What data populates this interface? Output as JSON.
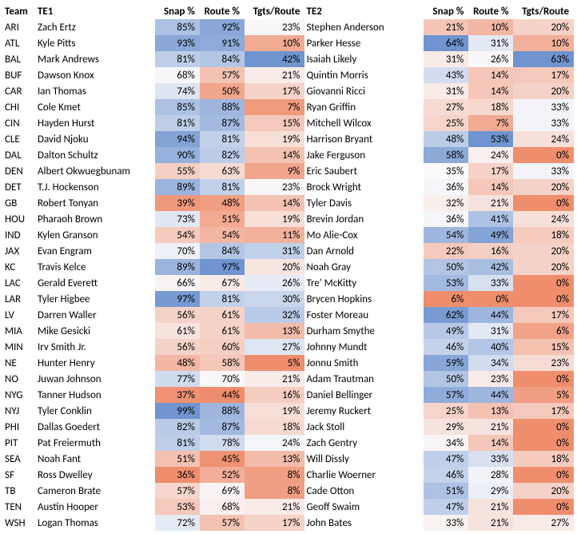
{
  "columns": [
    "Team",
    "TE1",
    "Snap %",
    "Route %",
    "Tgts/Route",
    "TE2",
    "Snap %",
    "Route %",
    "Tgts/Route"
  ],
  "rows": [
    {
      "team": "ARI",
      "te1": "Zach Ertz",
      "s1": 85,
      "r1": 92,
      "t1": 23,
      "te2": "Stephen Anderson",
      "s2": 21,
      "r2": 10,
      "t2": 20
    },
    {
      "team": "ATL",
      "te1": "Kyle Pitts",
      "s1": 93,
      "r1": 91,
      "t1": 10,
      "te2": "Parker Hesse",
      "s2": 64,
      "r2": 31,
      "t2": 10
    },
    {
      "team": "BAL",
      "te1": "Mark Andrews",
      "s1": 81,
      "r1": 84,
      "t1": 42,
      "te2": "Isaiah Likely",
      "s2": 31,
      "r2": 26,
      "t2": 63
    },
    {
      "team": "BUF",
      "te1": "Dawson Knox",
      "s1": 68,
      "r1": 57,
      "t1": 21,
      "te2": "Quintin Morris",
      "s2": 43,
      "r2": 14,
      "t2": 17
    },
    {
      "team": "CAR",
      "te1": "Ian Thomas",
      "s1": 74,
      "r1": 50,
      "t1": 17,
      "te2": "Giovanni Ricci",
      "s2": 31,
      "r2": 14,
      "t2": 20
    },
    {
      "team": "CHI",
      "te1": "Cole Kmet",
      "s1": 85,
      "r1": 88,
      "t1": 7,
      "te2": "Ryan Griffin",
      "s2": 27,
      "r2": 18,
      "t2": 33
    },
    {
      "team": "CIN",
      "te1": "Hayden Hurst",
      "s1": 81,
      "r1": 87,
      "t1": 15,
      "te2": "Mitchell Wilcox",
      "s2": 25,
      "r2": 7,
      "t2": 33
    },
    {
      "team": "CLE",
      "te1": "David Njoku",
      "s1": 94,
      "r1": 81,
      "t1": 19,
      "te2": "Harrison Bryant",
      "s2": 48,
      "r2": 53,
      "t2": 24
    },
    {
      "team": "DAL",
      "te1": "Dalton Schultz",
      "s1": 90,
      "r1": 82,
      "t1": 14,
      "te2": "Jake Ferguson",
      "s2": 58,
      "r2": 24,
      "t2": 0
    },
    {
      "team": "DEN",
      "te1": "Albert Okwuegbunam",
      "s1": 55,
      "r1": 63,
      "t1": 9,
      "te2": "Eric Saubert",
      "s2": 35,
      "r2": 17,
      "t2": 33
    },
    {
      "team": "DET",
      "te1": "T.J. Hockenson",
      "s1": 89,
      "r1": 81,
      "t1": 23,
      "te2": "Brock Wright",
      "s2": 36,
      "r2": 14,
      "t2": 20
    },
    {
      "team": "GB",
      "te1": "Robert Tonyan",
      "s1": 39,
      "r1": 48,
      "t1": 14,
      "te2": "Tyler Davis",
      "s2": 32,
      "r2": 21,
      "t2": 0
    },
    {
      "team": "HOU",
      "te1": "Pharaoh Brown",
      "s1": 73,
      "r1": 51,
      "t1": 19,
      "te2": "Brevin Jordan",
      "s2": 36,
      "r2": 41,
      "t2": 24
    },
    {
      "team": "IND",
      "te1": "Kylen Granson",
      "s1": 54,
      "r1": 54,
      "t1": 11,
      "te2": "Mo Alie-Cox",
      "s2": 54,
      "r2": 49,
      "t2": 18
    },
    {
      "team": "JAX",
      "te1": "Evan Engram",
      "s1": 70,
      "r1": 84,
      "t1": 31,
      "te2": "Dan Arnold",
      "s2": 22,
      "r2": 16,
      "t2": 20
    },
    {
      "team": "KC",
      "te1": "Travis Kelce",
      "s1": 89,
      "r1": 97,
      "t1": 20,
      "te2": "Noah Gray",
      "s2": 50,
      "r2": 42,
      "t2": 20
    },
    {
      "team": "LAC",
      "te1": "Gerald Everett",
      "s1": 66,
      "r1": 67,
      "t1": 26,
      "te2": "Tre' McKitty",
      "s2": 53,
      "r2": 33,
      "t2": 0
    },
    {
      "team": "LAR",
      "te1": "Tyler Higbee",
      "s1": 97,
      "r1": 81,
      "t1": 30,
      "te2": "Brycen Hopkins",
      "s2": 6,
      "r2": 0,
      "t2": 0
    },
    {
      "team": "LV",
      "te1": "Darren Waller",
      "s1": 56,
      "r1": 61,
      "t1": 32,
      "te2": "Foster Moreau",
      "s2": 62,
      "r2": 44,
      "t2": 17
    },
    {
      "team": "MIA",
      "te1": "Mike Gesicki",
      "s1": 61,
      "r1": 61,
      "t1": 13,
      "te2": "Durham Smythe",
      "s2": 49,
      "r2": 31,
      "t2": 6
    },
    {
      "team": "MIN",
      "te1": "Irv Smith Jr.",
      "s1": 56,
      "r1": 60,
      "t1": 27,
      "te2": "Johnny Mundt",
      "s2": 46,
      "r2": 40,
      "t2": 15
    },
    {
      "team": "NE",
      "te1": "Hunter Henry",
      "s1": 48,
      "r1": 58,
      "t1": 5,
      "te2": "Jonnu Smith",
      "s2": 59,
      "r2": 34,
      "t2": 23
    },
    {
      "team": "NO",
      "te1": "Juwan Johnson",
      "s1": 77,
      "r1": 70,
      "t1": 21,
      "te2": "Adam Trautman",
      "s2": 50,
      "r2": 23,
      "t2": 0
    },
    {
      "team": "NYG",
      "te1": "Tanner Hudson",
      "s1": 37,
      "r1": 44,
      "t1": 16,
      "te2": "Daniel Bellinger",
      "s2": 57,
      "r2": 44,
      "t2": 5
    },
    {
      "team": "NYJ",
      "te1": "Tyler Conklin",
      "s1": 99,
      "r1": 88,
      "t1": 19,
      "te2": "Jeremy Ruckert",
      "s2": 25,
      "r2": 13,
      "t2": 17
    },
    {
      "team": "PHI",
      "te1": "Dallas Goedert",
      "s1": 82,
      "r1": 87,
      "t1": 18,
      "te2": "Jack Stoll",
      "s2": 29,
      "r2": 21,
      "t2": 0
    },
    {
      "team": "PIT",
      "te1": "Pat Freiermuth",
      "s1": 81,
      "r1": 78,
      "t1": 24,
      "te2": "Zach Gentry",
      "s2": 34,
      "r2": 14,
      "t2": 0
    },
    {
      "team": "SEA",
      "te1": "Noah Fant",
      "s1": 51,
      "r1": 45,
      "t1": 13,
      "te2": "Will Dissly",
      "s2": 47,
      "r2": 33,
      "t2": 18
    },
    {
      "team": "SF",
      "te1": "Ross Dwelley",
      "s1": 36,
      "r1": 52,
      "t1": 8,
      "te2": "Charlie Woerner",
      "s2": 46,
      "r2": 28,
      "t2": 0
    },
    {
      "team": "TB",
      "te1": "Cameron Brate",
      "s1": 57,
      "r1": 69,
      "t1": 8,
      "te2": "Cade Otton",
      "s2": 51,
      "r2": 29,
      "t2": 20
    },
    {
      "team": "TEN",
      "te1": "Austin Hooper",
      "s1": 53,
      "r1": 68,
      "t1": 21,
      "te2": "Geoff Swaim",
      "s2": 47,
      "r2": 21,
      "t2": 0
    },
    {
      "team": "WSH",
      "te1": "Logan Thomas",
      "s1": 72,
      "r1": 57,
      "t1": 17,
      "te2": "John Bates",
      "s2": 33,
      "r2": 21,
      "t2": 27
    }
  ],
  "scales": {
    "s1": {
      "min": 36,
      "max": 99,
      "low": "#ef8e6d",
      "mid": "#f9f9fb",
      "high": "#6f94cf"
    },
    "r1": {
      "min": 44,
      "max": 97,
      "low": "#ef8e6d",
      "mid": "#f9f9fb",
      "high": "#6f94cf"
    },
    "t1": {
      "min": 5,
      "max": 42,
      "low": "#ef8e6d",
      "mid": "#f9f9fb",
      "high": "#6f94cf"
    },
    "s2": {
      "min": 6,
      "max": 64,
      "low": "#ef8e6d",
      "mid": "#f9f9fb",
      "high": "#6f94cf"
    },
    "r2": {
      "min": 0,
      "max": 53,
      "low": "#ef8e6d",
      "mid": "#f9f9fb",
      "high": "#6f94cf"
    },
    "t2": {
      "min": 0,
      "max": 63,
      "low": "#ef8e6d",
      "mid": "#f9f9fb",
      "high": "#6f94cf"
    }
  }
}
